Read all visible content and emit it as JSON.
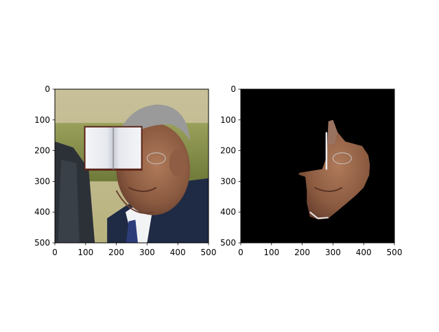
{
  "figure": {
    "background": "#ffffff"
  },
  "chart_data": [
    {
      "type": "image",
      "title": "",
      "content": "photo of a man in a suit and tie with an open book pasted over the upper face",
      "xlim": [
        0,
        500
      ],
      "ylim": [
        500,
        0
      ],
      "xticks": [
        0,
        100,
        200,
        300,
        400,
        500
      ],
      "yticks": [
        0,
        100,
        200,
        300,
        400,
        500
      ],
      "xticklabels": [
        "0",
        "100",
        "200",
        "300",
        "400",
        "500"
      ],
      "yticklabels": [
        "0",
        "100",
        "200",
        "300",
        "400",
        "500"
      ],
      "book_region": {
        "x": [
          95,
          285
        ],
        "y": [
          120,
          265
        ]
      }
    },
    {
      "type": "image",
      "title": "",
      "content": "segmented face region shown on a black background",
      "background": "#000000",
      "xlim": [
        0,
        500
      ],
      "ylim": [
        500,
        0
      ],
      "xticks": [
        0,
        100,
        200,
        300,
        400,
        500
      ],
      "yticks": [
        0,
        100,
        200,
        300,
        400,
        500
      ],
      "xticklabels": [
        "0",
        "100",
        "200",
        "300",
        "400",
        "500"
      ],
      "yticklabels": [
        "0",
        "100",
        "200",
        "300",
        "400",
        "500"
      ],
      "mask_outline": [
        [
          285,
          105
        ],
        [
          300,
          100
        ],
        [
          315,
          140
        ],
        [
          340,
          170
        ],
        [
          395,
          185
        ],
        [
          415,
          215
        ],
        [
          420,
          245
        ],
        [
          418,
          280
        ],
        [
          400,
          320
        ],
        [
          375,
          345
        ],
        [
          340,
          375
        ],
        [
          310,
          400
        ],
        [
          285,
          420
        ],
        [
          255,
          425
        ],
        [
          225,
          415
        ],
        [
          215,
          370
        ],
        [
          215,
          330
        ],
        [
          210,
          285
        ],
        [
          188,
          278
        ],
        [
          190,
          272
        ],
        [
          215,
          268
        ],
        [
          265,
          260
        ],
        [
          280,
          220
        ],
        [
          283,
          150
        ]
      ]
    }
  ]
}
